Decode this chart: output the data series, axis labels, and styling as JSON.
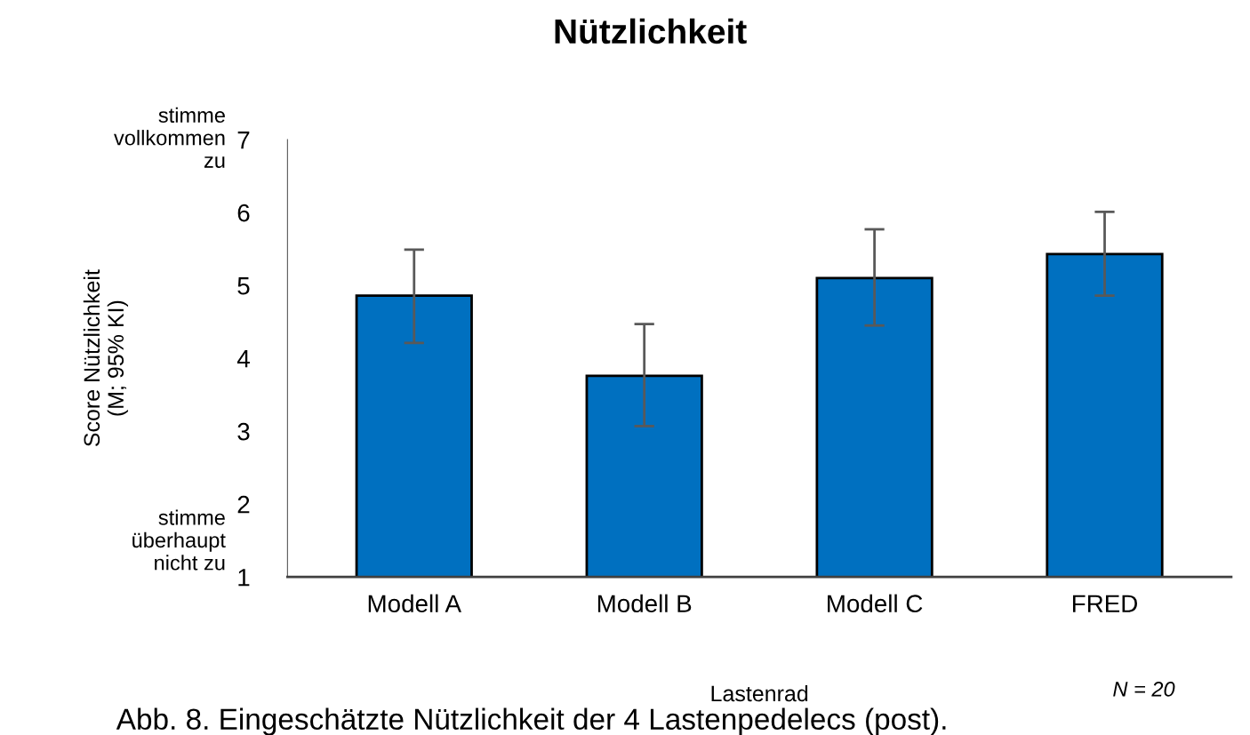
{
  "chart_data": {
    "type": "bar",
    "title": "Nützlichkeit",
    "ylabel": "Score Nützlichkeit\n(M; 95% KI)",
    "xlabel": "Lastenrad",
    "categories": [
      "Modell A",
      "Modell B",
      "Modell C",
      "FRED"
    ],
    "values": [
      4.86,
      3.76,
      5.1,
      5.43
    ],
    "errors": [
      [
        4.21,
        5.49
      ],
      [
        3.07,
        4.47
      ],
      [
        4.45,
        5.77
      ],
      [
        4.86,
        6.01
      ]
    ],
    "color": "#0070c0",
    "ylim": [
      1,
      7
    ],
    "yticks": [
      1,
      2,
      3,
      4,
      5,
      6,
      7
    ],
    "annotations": [
      "stimme\nvollkommen\nzu",
      "stimme\nüberhaupt\nnicht zu",
      "N = 20",
      "Abb. 8. Eingeschätzte Nützlichkeit der 4 Lastenpedelecs (post)."
    ]
  }
}
